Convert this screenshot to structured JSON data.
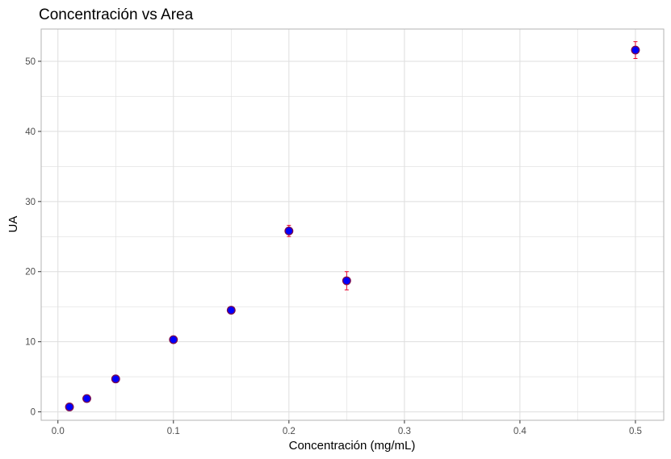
{
  "chart_data": {
    "type": "scatter",
    "title": "Concentración vs Area",
    "xlabel": "Concentración (mg/mL)",
    "ylabel": "UA",
    "xlim": [
      -0.0145,
      0.5245
    ],
    "ylim": [
      -1.2,
      54.6
    ],
    "x_ticks": [
      0.0,
      0.1,
      0.2,
      0.3,
      0.4,
      0.5
    ],
    "x_tick_labels": [
      "0.0",
      "0.1",
      "0.2",
      "0.3",
      "0.4",
      "0.5"
    ],
    "x_minor_ticks": [
      0.05,
      0.15,
      0.25,
      0.35,
      0.45
    ],
    "y_ticks": [
      0,
      10,
      20,
      30,
      40,
      50
    ],
    "y_tick_labels": [
      "0",
      "10",
      "20",
      "30",
      "40",
      "50"
    ],
    "y_minor_ticks": [
      5,
      15,
      25,
      35,
      45
    ],
    "grid": true,
    "legend": "none",
    "colors": {
      "point_fill": "#0000ff",
      "point_stroke": "#7a0a4a",
      "error_bar": "#e8002a",
      "grid": "#dedede",
      "panel_border": "#b3b3b3"
    },
    "series": [
      {
        "x": [
          0.01,
          0.025,
          0.05,
          0.1,
          0.15,
          0.2,
          0.25,
          0.5
        ],
        "y": [
          0.7,
          1.9,
          4.7,
          10.3,
          14.5,
          25.8,
          18.7,
          51.6
        ],
        "error": [
          0.2,
          0.2,
          0.3,
          0.3,
          0.3,
          0.8,
          1.3,
          1.2
        ]
      }
    ]
  }
}
